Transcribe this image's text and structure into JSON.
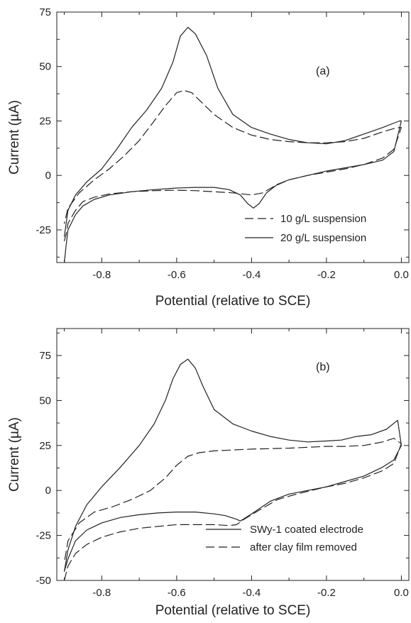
{
  "colors": {
    "line": "#222222"
  },
  "chart_data": [
    {
      "type": "line",
      "panel_label": "(a)",
      "xlabel": "Potential (relative to SCE)",
      "ylabel": "Current (µA)",
      "xlim": [
        -0.92,
        0.02
      ],
      "ylim": [
        -40,
        75
      ],
      "xticks": [
        -0.8,
        -0.6,
        -0.4,
        -0.2,
        0.0
      ],
      "xtick_labels": [
        "-0.8",
        "-0.6",
        "-0.4",
        "-0.2",
        "0.0"
      ],
      "yticks": [
        -25,
        0,
        25,
        50,
        75
      ],
      "ytick_labels": [
        "-25",
        "0",
        "25",
        "50",
        "75"
      ],
      "legend_position": "bottom-right",
      "series": [
        {
          "name": "10 g/L suspension",
          "style": "dashed",
          "x": [
            -0.9,
            -0.895,
            -0.89,
            -0.87,
            -0.85,
            -0.82,
            -0.78,
            -0.72,
            -0.66,
            -0.6,
            -0.55,
            -0.5,
            -0.45,
            -0.4,
            -0.37,
            -0.34,
            -0.3,
            -0.25,
            -0.2,
            -0.15,
            -0.1,
            -0.05,
            -0.02,
            0.0,
            -0.005,
            -0.02,
            -0.05,
            -0.1,
            -0.15,
            -0.2,
            -0.25,
            -0.3,
            -0.35,
            -0.4,
            -0.45,
            -0.5,
            -0.53,
            -0.56,
            -0.58,
            -0.6,
            -0.63,
            -0.66,
            -0.7,
            -0.74,
            -0.78,
            -0.82,
            -0.86,
            -0.89,
            -0.9
          ],
          "y": [
            -30,
            -27,
            -22,
            -16,
            -12,
            -10,
            -8.5,
            -7.5,
            -7,
            -6.8,
            -7,
            -7.5,
            -8,
            -9,
            -8,
            -5,
            -2,
            0,
            1.5,
            3,
            5,
            8,
            12,
            22,
            22,
            21.5,
            20,
            17,
            15.5,
            15,
            15,
            15.5,
            16.5,
            18.5,
            22,
            28,
            33,
            38,
            39,
            38,
            32,
            25,
            16,
            9,
            3,
            -2,
            -8,
            -15,
            -22
          ]
        },
        {
          "name": "20 g/L suspension",
          "style": "solid",
          "x": [
            -0.9,
            -0.895,
            -0.89,
            -0.87,
            -0.85,
            -0.82,
            -0.78,
            -0.72,
            -0.66,
            -0.6,
            -0.55,
            -0.5,
            -0.46,
            -0.43,
            -0.41,
            -0.395,
            -0.38,
            -0.36,
            -0.33,
            -0.3,
            -0.25,
            -0.2,
            -0.15,
            -0.1,
            -0.05,
            -0.02,
            0.0,
            -0.005,
            -0.02,
            -0.05,
            -0.1,
            -0.15,
            -0.2,
            -0.25,
            -0.3,
            -0.35,
            -0.4,
            -0.45,
            -0.49,
            -0.52,
            -0.55,
            -0.57,
            -0.59,
            -0.61,
            -0.64,
            -0.68,
            -0.72,
            -0.76,
            -0.8,
            -0.84,
            -0.87,
            -0.89,
            -0.9
          ],
          "y": [
            -40,
            -32,
            -25,
            -18,
            -14,
            -11,
            -9,
            -7.5,
            -6.5,
            -5.8,
            -5.5,
            -5.5,
            -6.5,
            -9,
            -13,
            -15,
            -13,
            -8,
            -4,
            -2,
            0,
            2,
            3.5,
            5,
            7,
            11,
            25,
            25,
            24,
            22,
            19,
            16,
            14.5,
            15,
            16.5,
            19,
            22,
            28,
            40,
            55,
            65,
            68,
            64,
            52,
            40,
            30,
            22,
            12,
            3,
            -3,
            -9,
            -16,
            -28
          ]
        }
      ]
    },
    {
      "type": "line",
      "panel_label": "(b)",
      "xlabel": "Potential (relative to SCE)",
      "ylabel": "Current (µA)",
      "xlim": [
        -0.92,
        0.02
      ],
      "ylim": [
        -50,
        90
      ],
      "xticks": [
        -0.8,
        -0.6,
        -0.4,
        -0.2,
        0.0
      ],
      "xtick_labels": [
        "-0.8",
        "-0.6",
        "-0.4",
        "-0.2",
        "0.0"
      ],
      "yticks": [
        -50,
        -25,
        0,
        25,
        50,
        75
      ],
      "ytick_labels": [
        "-50",
        "-25",
        "0",
        "25",
        "50",
        "75"
      ],
      "legend_position": "bottom-right",
      "series": [
        {
          "name": "SWy-1 coated electrode",
          "style": "solid",
          "x": [
            -0.9,
            -0.89,
            -0.87,
            -0.84,
            -0.8,
            -0.75,
            -0.7,
            -0.65,
            -0.6,
            -0.55,
            -0.5,
            -0.47,
            -0.44,
            -0.43,
            -0.4,
            -0.35,
            -0.3,
            -0.25,
            -0.2,
            -0.15,
            -0.1,
            -0.05,
            -0.02,
            0.0,
            -0.01,
            -0.04,
            -0.08,
            -0.12,
            -0.16,
            -0.2,
            -0.25,
            -0.3,
            -0.35,
            -0.4,
            -0.45,
            -0.5,
            -0.53,
            -0.55,
            -0.57,
            -0.59,
            -0.61,
            -0.63,
            -0.66,
            -0.7,
            -0.75,
            -0.8,
            -0.84,
            -0.87,
            -0.89,
            -0.9
          ],
          "y": [
            -45,
            -38,
            -28,
            -22,
            -18,
            -15,
            -13.5,
            -12.5,
            -12,
            -12,
            -13,
            -14,
            -16,
            -17,
            -13,
            -6,
            -2,
            0,
            2,
            5,
            8,
            13,
            17,
            25,
            39,
            34,
            31,
            30,
            28,
            27.5,
            27,
            28,
            30,
            33,
            37,
            45,
            58,
            68,
            73,
            70,
            62,
            50,
            37,
            25,
            13,
            2,
            -8,
            -20,
            -33,
            -45
          ]
        },
        {
          "name": "after clay film removed",
          "style": "dashed",
          "x": [
            -0.9,
            -0.89,
            -0.87,
            -0.84,
            -0.8,
            -0.75,
            -0.7,
            -0.65,
            -0.6,
            -0.55,
            -0.5,
            -0.46,
            -0.44,
            -0.42,
            -0.38,
            -0.33,
            -0.28,
            -0.24,
            -0.2,
            -0.15,
            -0.1,
            -0.05,
            -0.02,
            0.0,
            -0.02,
            -0.05,
            -0.1,
            -0.15,
            -0.2,
            -0.3,
            -0.4,
            -0.5,
            -0.54,
            -0.57,
            -0.6,
            -0.63,
            -0.67,
            -0.72,
            -0.77,
            -0.82,
            -0.86,
            -0.89,
            -0.9
          ],
          "y": [
            -50,
            -42,
            -35,
            -30,
            -26,
            -23,
            -21,
            -20,
            -19,
            -19,
            -19,
            -19.5,
            -19,
            -16,
            -11,
            -5,
            -2,
            0,
            2,
            4,
            7,
            11,
            15,
            26,
            29,
            27,
            25,
            24.5,
            24.5,
            23.5,
            23,
            22,
            21,
            19,
            14,
            7,
            0,
            -5,
            -9,
            -12,
            -18,
            -28,
            -40
          ]
        }
      ]
    }
  ]
}
